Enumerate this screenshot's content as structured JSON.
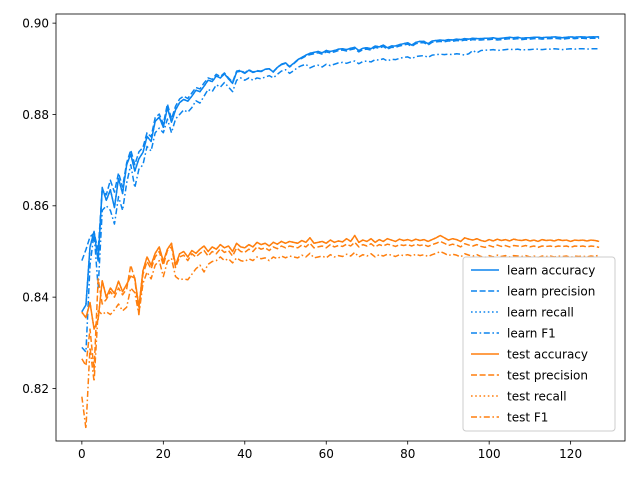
{
  "chart_data": {
    "type": "line",
    "title": "",
    "xlabel": "",
    "ylabel": "",
    "xlim": [
      -6.35,
      133.35
    ],
    "ylim": [
      0.8085,
      0.902
    ],
    "xticks": [
      0,
      20,
      40,
      60,
      80,
      100,
      120
    ],
    "xtick_labels": [
      "0",
      "20",
      "40",
      "60",
      "80",
      "100",
      "120"
    ],
    "yticks": [
      0.82,
      0.84,
      0.86,
      0.88,
      0.9
    ],
    "ytick_labels": [
      "0.82",
      "0.84",
      "0.86",
      "0.88",
      "0.90"
    ],
    "grid": false,
    "legend_position": "lower-right",
    "x_step": 1,
    "series": [
      {
        "name": "learn accuracy",
        "color": "#0b84ee",
        "dash": "solid",
        "values": [
          0.8368,
          0.8383,
          0.851,
          0.8544,
          0.8479,
          0.864,
          0.8612,
          0.8635,
          0.8596,
          0.866,
          0.8627,
          0.869,
          0.8713,
          0.8676,
          0.8703,
          0.8717,
          0.8752,
          0.8741,
          0.8785,
          0.8794,
          0.8772,
          0.8815,
          0.8783,
          0.881,
          0.8826,
          0.8833,
          0.8829,
          0.884,
          0.8853,
          0.885,
          0.8862,
          0.8875,
          0.8872,
          0.8884,
          0.888,
          0.8889,
          0.8878,
          0.8868,
          0.8893,
          0.8895,
          0.889,
          0.8897,
          0.8892,
          0.8895,
          0.8894,
          0.8899,
          0.89,
          0.8893,
          0.8903,
          0.891,
          0.8913,
          0.8905,
          0.8912,
          0.892,
          0.8925,
          0.893,
          0.8934,
          0.8936,
          0.8938,
          0.8935,
          0.894,
          0.8938,
          0.894,
          0.8943,
          0.8944,
          0.8942,
          0.8945,
          0.8947,
          0.894,
          0.8945,
          0.8946,
          0.8944,
          0.895,
          0.8948,
          0.8952,
          0.8946,
          0.895,
          0.895,
          0.8953,
          0.8955,
          0.8957,
          0.8952,
          0.8958,
          0.896,
          0.896,
          0.8955,
          0.8961,
          0.8962,
          0.8963,
          0.8962,
          0.8964,
          0.8963,
          0.8965,
          0.8964,
          0.8966,
          0.8965,
          0.8967,
          0.8966,
          0.8966,
          0.8967,
          0.8967,
          0.8968,
          0.8966,
          0.8967,
          0.8968,
          0.8969,
          0.8968,
          0.8969,
          0.8967,
          0.8968,
          0.8968,
          0.8969,
          0.8969,
          0.8968,
          0.8969,
          0.8969,
          0.897,
          0.8969,
          0.8968,
          0.8969,
          0.897,
          0.8969,
          0.897,
          0.897,
          0.8969,
          0.897,
          0.897,
          0.897
        ]
      },
      {
        "name": "learn precision",
        "color": "#0b84ee",
        "dash": "dashed",
        "values": [
          0.848,
          0.8504,
          0.8532,
          0.854,
          0.8503,
          0.8634,
          0.8624,
          0.8656,
          0.863,
          0.8672,
          0.8641,
          0.8694,
          0.8722,
          0.869,
          0.8718,
          0.8728,
          0.876,
          0.8751,
          0.8793,
          0.8801,
          0.8779,
          0.8823,
          0.879,
          0.8818,
          0.8834,
          0.884,
          0.8835,
          0.8847,
          0.8859,
          0.8856,
          0.8869,
          0.888,
          0.8877,
          0.8888,
          0.8883,
          0.8891,
          0.888,
          0.8871,
          0.8895,
          0.8897,
          0.8891,
          0.8898,
          0.8893,
          0.8896,
          0.8895,
          0.8899,
          0.89,
          0.8894,
          0.8903,
          0.8909,
          0.8912,
          0.8904,
          0.8911,
          0.8919,
          0.8923,
          0.8928,
          0.8931,
          0.8933,
          0.8935,
          0.8932,
          0.8937,
          0.8935,
          0.8937,
          0.894,
          0.8941,
          0.8939,
          0.8942,
          0.8944,
          0.8937,
          0.8942,
          0.8943,
          0.8941,
          0.8947,
          0.8945,
          0.8949,
          0.8943,
          0.8947,
          0.8947,
          0.895,
          0.8952,
          0.8954,
          0.8949,
          0.8955,
          0.8957,
          0.8957,
          0.8952,
          0.8958,
          0.8959,
          0.896,
          0.8959,
          0.8961,
          0.896,
          0.8962,
          0.8961,
          0.8963,
          0.8962,
          0.8964,
          0.8963,
          0.8963,
          0.8964,
          0.8964,
          0.8965,
          0.8963,
          0.8964,
          0.8965,
          0.8966,
          0.8965,
          0.8966,
          0.8964,
          0.8965,
          0.8965,
          0.8966,
          0.8966,
          0.8965,
          0.8966,
          0.8966,
          0.8967,
          0.8966,
          0.8965,
          0.8966,
          0.8967,
          0.8966,
          0.8967,
          0.8967,
          0.8966,
          0.8967,
          0.8967,
          0.8967
        ]
      },
      {
        "name": "learn recall",
        "color": "#0b84ee",
        "dash": "dotted",
        "values": [
          0.8368,
          0.8383,
          0.851,
          0.8544,
          0.8479,
          0.864,
          0.8612,
          0.8635,
          0.8596,
          0.866,
          0.8627,
          0.869,
          0.8713,
          0.8676,
          0.8703,
          0.8717,
          0.8752,
          0.8741,
          0.8785,
          0.8794,
          0.8772,
          0.8815,
          0.8783,
          0.881,
          0.8826,
          0.8833,
          0.8829,
          0.884,
          0.8853,
          0.885,
          0.8862,
          0.8875,
          0.8872,
          0.8884,
          0.888,
          0.8889,
          0.8878,
          0.8868,
          0.8893,
          0.8895,
          0.889,
          0.8897,
          0.8892,
          0.8895,
          0.8894,
          0.8899,
          0.89,
          0.8893,
          0.8903,
          0.891,
          0.8913,
          0.8905,
          0.8912,
          0.892,
          0.8925,
          0.893,
          0.8934,
          0.8936,
          0.8938,
          0.8935,
          0.894,
          0.8938,
          0.894,
          0.8943,
          0.8944,
          0.8942,
          0.8945,
          0.8947,
          0.894,
          0.8945,
          0.8946,
          0.8944,
          0.895,
          0.8948,
          0.8952,
          0.8946,
          0.895,
          0.895,
          0.8953,
          0.8955,
          0.8957,
          0.8952,
          0.8958,
          0.896,
          0.896,
          0.8955,
          0.8961,
          0.8962,
          0.8963,
          0.8962,
          0.8964,
          0.8963,
          0.8965,
          0.8964,
          0.8966,
          0.8965,
          0.8967,
          0.8966,
          0.8966,
          0.8967,
          0.8967,
          0.8968,
          0.8966,
          0.8967,
          0.8968,
          0.8969,
          0.8968,
          0.8969,
          0.8967,
          0.8968,
          0.8968,
          0.8969,
          0.8969,
          0.8968,
          0.8969,
          0.8969,
          0.897,
          0.8969,
          0.8968,
          0.8969,
          0.897,
          0.8969,
          0.897,
          0.897,
          0.8969,
          0.897,
          0.897,
          0.897
        ]
      },
      {
        "name": "learn F1",
        "color": "#0b84ee",
        "dash": "dashdot",
        "values": [
          0.829,
          0.828,
          0.847,
          0.854,
          0.842,
          0.859,
          0.86,
          0.859,
          0.856,
          0.862,
          0.859,
          0.865,
          0.869,
          0.864,
          0.868,
          0.869,
          0.873,
          0.872,
          0.876,
          0.877,
          0.876,
          0.879,
          0.876,
          0.879,
          0.88,
          0.881,
          0.8805,
          0.8815,
          0.883,
          0.8825,
          0.884,
          0.8855,
          0.885,
          0.8865,
          0.886,
          0.887,
          0.886,
          0.885,
          0.8875,
          0.888,
          0.8875,
          0.888,
          0.8875,
          0.888,
          0.8878,
          0.8882,
          0.8885,
          0.888,
          0.8888,
          0.8895,
          0.8898,
          0.889,
          0.8896,
          0.8903,
          0.8907,
          0.891,
          0.8902,
          0.8906,
          0.8908,
          0.8904,
          0.891,
          0.8907,
          0.891,
          0.8913,
          0.8914,
          0.8912,
          0.8915,
          0.8917,
          0.8911,
          0.8916,
          0.8917,
          0.8915,
          0.892,
          0.8919,
          0.8922,
          0.8917,
          0.8921,
          0.892,
          0.8923,
          0.8925,
          0.8926,
          0.8922,
          0.8927,
          0.8928,
          0.8929,
          0.8925,
          0.893,
          0.8931,
          0.8932,
          0.8931,
          0.8932,
          0.8931,
          0.8933,
          0.8932,
          0.893,
          0.8933,
          0.894,
          0.8935,
          0.894,
          0.8941,
          0.8941,
          0.8942,
          0.894,
          0.8941,
          0.8942,
          0.8943,
          0.8942,
          0.8943,
          0.8941,
          0.8942,
          0.8942,
          0.8943,
          0.8943,
          0.8942,
          0.8943,
          0.8943,
          0.8944,
          0.8943,
          0.8942,
          0.8943,
          0.8944,
          0.8943,
          0.8944,
          0.8944,
          0.8943,
          0.8944,
          0.8944,
          0.8944
        ]
      },
      {
        "name": "test accuracy",
        "color": "#ff7f0e",
        "dash": "solid",
        "values": [
          0.8367,
          0.8355,
          0.8388,
          0.833,
          0.8352,
          0.8436,
          0.84,
          0.842,
          0.8408,
          0.8435,
          0.8412,
          0.8428,
          0.8446,
          0.8442,
          0.8378,
          0.8458,
          0.8488,
          0.847,
          0.8496,
          0.851,
          0.8478,
          0.8505,
          0.8518,
          0.847,
          0.8495,
          0.85,
          0.8488,
          0.8502,
          0.8496,
          0.8505,
          0.8512,
          0.85,
          0.851,
          0.8505,
          0.8515,
          0.8508,
          0.8512,
          0.85,
          0.8518,
          0.851,
          0.8508,
          0.8515,
          0.851,
          0.852,
          0.8515,
          0.8518,
          0.8512,
          0.852,
          0.8516,
          0.8522,
          0.8518,
          0.8522,
          0.852,
          0.8518,
          0.8524,
          0.852,
          0.853,
          0.8518,
          0.852,
          0.8522,
          0.8518,
          0.8525,
          0.852,
          0.8523,
          0.8521,
          0.8528,
          0.8522,
          0.8535,
          0.852,
          0.8525,
          0.8522,
          0.8528,
          0.852,
          0.8526,
          0.8522,
          0.8528,
          0.8525,
          0.8522,
          0.8527,
          0.8524,
          0.8526,
          0.8523,
          0.8527,
          0.8524,
          0.8526,
          0.8522,
          0.8526,
          0.853,
          0.8535,
          0.853,
          0.8525,
          0.8528,
          0.8526,
          0.8522,
          0.853,
          0.8527,
          0.8525,
          0.8528,
          0.8524,
          0.8522,
          0.8526,
          0.8523,
          0.8527,
          0.8524,
          0.8526,
          0.8523,
          0.8527,
          0.8525,
          0.8524,
          0.8526,
          0.8523,
          0.8525,
          0.8522,
          0.8526,
          0.8524,
          0.8525,
          0.8523,
          0.8526,
          0.8524,
          0.8525,
          0.8522,
          0.8525,
          0.8524,
          0.8525,
          0.8523,
          0.8525,
          0.8524,
          0.8522
        ]
      },
      {
        "name": "test precision",
        "color": "#ff7f0e",
        "dash": "dashed",
        "values": [
          0.8265,
          0.825,
          0.833,
          0.824,
          0.844,
          0.8385,
          0.8395,
          0.8412,
          0.84,
          0.842,
          0.8405,
          0.8418,
          0.847,
          0.844,
          0.8362,
          0.845,
          0.8478,
          0.8462,
          0.8488,
          0.85,
          0.847,
          0.8502,
          0.851,
          0.8465,
          0.8488,
          0.8492,
          0.848,
          0.8495,
          0.8488,
          0.8496,
          0.8502,
          0.849,
          0.85,
          0.8495,
          0.8506,
          0.8498,
          0.8502,
          0.849,
          0.8508,
          0.85,
          0.8498,
          0.8505,
          0.85,
          0.851,
          0.8505,
          0.8508,
          0.8502,
          0.851,
          0.8506,
          0.8512,
          0.8508,
          0.8512,
          0.851,
          0.8508,
          0.8514,
          0.851,
          0.8518,
          0.8508,
          0.851,
          0.8512,
          0.8508,
          0.8515,
          0.851,
          0.8513,
          0.8511,
          0.8516,
          0.8512,
          0.852,
          0.851,
          0.8515,
          0.8512,
          0.8517,
          0.851,
          0.8515,
          0.8512,
          0.8516,
          0.8514,
          0.8511,
          0.8515,
          0.8513,
          0.8515,
          0.8512,
          0.8516,
          0.8513,
          0.8515,
          0.8511,
          0.8515,
          0.8518,
          0.8522,
          0.8518,
          0.8513,
          0.8516,
          0.8514,
          0.851,
          0.8517,
          0.8514,
          0.8512,
          0.8515,
          0.8511,
          0.8509,
          0.8513,
          0.851,
          0.8514,
          0.8511,
          0.8513,
          0.851,
          0.8513,
          0.8512,
          0.8511,
          0.8513,
          0.851,
          0.8512,
          0.8509,
          0.8512,
          0.8511,
          0.8512,
          0.851,
          0.8512,
          0.8511,
          0.8512,
          0.8509,
          0.8512,
          0.8511,
          0.8512,
          0.851,
          0.8512,
          0.8511,
          0.8509
        ]
      },
      {
        "name": "test recall",
        "color": "#ff7f0e",
        "dash": "dotted",
        "values": [
          0.8367,
          0.8355,
          0.8388,
          0.833,
          0.8352,
          0.8436,
          0.84,
          0.842,
          0.8408,
          0.8435,
          0.8412,
          0.8428,
          0.8446,
          0.8442,
          0.8378,
          0.8458,
          0.8488,
          0.847,
          0.8496,
          0.851,
          0.8478,
          0.8505,
          0.8518,
          0.847,
          0.8495,
          0.85,
          0.8488,
          0.8502,
          0.8496,
          0.8505,
          0.8512,
          0.85,
          0.851,
          0.8505,
          0.8515,
          0.8508,
          0.8512,
          0.85,
          0.8518,
          0.851,
          0.8508,
          0.8515,
          0.851,
          0.852,
          0.8515,
          0.8518,
          0.8512,
          0.852,
          0.8516,
          0.8522,
          0.8518,
          0.8522,
          0.852,
          0.8518,
          0.8524,
          0.852,
          0.853,
          0.8518,
          0.852,
          0.8522,
          0.8518,
          0.8525,
          0.852,
          0.8523,
          0.8521,
          0.8528,
          0.8522,
          0.8535,
          0.852,
          0.8525,
          0.8522,
          0.8528,
          0.852,
          0.8526,
          0.8522,
          0.8528,
          0.8525,
          0.8522,
          0.8527,
          0.8524,
          0.8526,
          0.8523,
          0.8527,
          0.8524,
          0.8526,
          0.8522,
          0.8526,
          0.853,
          0.8535,
          0.853,
          0.8525,
          0.8528,
          0.8526,
          0.8522,
          0.853,
          0.8527,
          0.8525,
          0.8528,
          0.8524,
          0.8522,
          0.8526,
          0.8523,
          0.8527,
          0.8524,
          0.8526,
          0.8523,
          0.8527,
          0.8525,
          0.8524,
          0.8526,
          0.8523,
          0.8525,
          0.8522,
          0.8526,
          0.8524,
          0.8525,
          0.8523,
          0.8526,
          0.8524,
          0.8525,
          0.8522,
          0.8525,
          0.8524,
          0.8525,
          0.8523,
          0.8525,
          0.8524,
          0.8522
        ]
      },
      {
        "name": "test F1",
        "color": "#ff7f0e",
        "dash": "dashdot",
        "values": [
          0.8182,
          0.8112,
          0.829,
          0.8215,
          0.837,
          0.8362,
          0.8368,
          0.8362,
          0.8372,
          0.8385,
          0.837,
          0.8378,
          0.842,
          0.841,
          0.8362,
          0.843,
          0.8455,
          0.844,
          0.847,
          0.848,
          0.8445,
          0.8478,
          0.8485,
          0.8445,
          0.8438,
          0.844,
          0.8438,
          0.845,
          0.8462,
          0.847,
          0.8455,
          0.8472,
          0.8478,
          0.848,
          0.8488,
          0.848,
          0.8484,
          0.8475,
          0.8486,
          0.848,
          0.8478,
          0.8484,
          0.848,
          0.8488,
          0.8484,
          0.8486,
          0.848,
          0.8488,
          0.8484,
          0.849,
          0.8486,
          0.849,
          0.8488,
          0.8486,
          0.8492,
          0.8488,
          0.8496,
          0.8486,
          0.8488,
          0.849,
          0.8486,
          0.8493,
          0.8488,
          0.8491,
          0.8489,
          0.8494,
          0.849,
          0.8498,
          0.8488,
          0.8493,
          0.849,
          0.8495,
          0.8488,
          0.8493,
          0.849,
          0.8494,
          0.8492,
          0.8489,
          0.8493,
          0.8491,
          0.8493,
          0.849,
          0.8494,
          0.8491,
          0.8493,
          0.8489,
          0.8493,
          0.8496,
          0.85,
          0.8496,
          0.8491,
          0.8494,
          0.8492,
          0.8488,
          0.8495,
          0.8492,
          0.849,
          0.8493,
          0.8489,
          0.8487,
          0.8491,
          0.8488,
          0.8492,
          0.8489,
          0.8491,
          0.8488,
          0.8491,
          0.849,
          0.8489,
          0.8491,
          0.8488,
          0.849,
          0.8487,
          0.849,
          0.8489,
          0.849,
          0.8488,
          0.849,
          0.8489,
          0.849,
          0.8487,
          0.849,
          0.8489,
          0.849,
          0.8488,
          0.849,
          0.8489,
          0.8493
        ]
      }
    ]
  }
}
